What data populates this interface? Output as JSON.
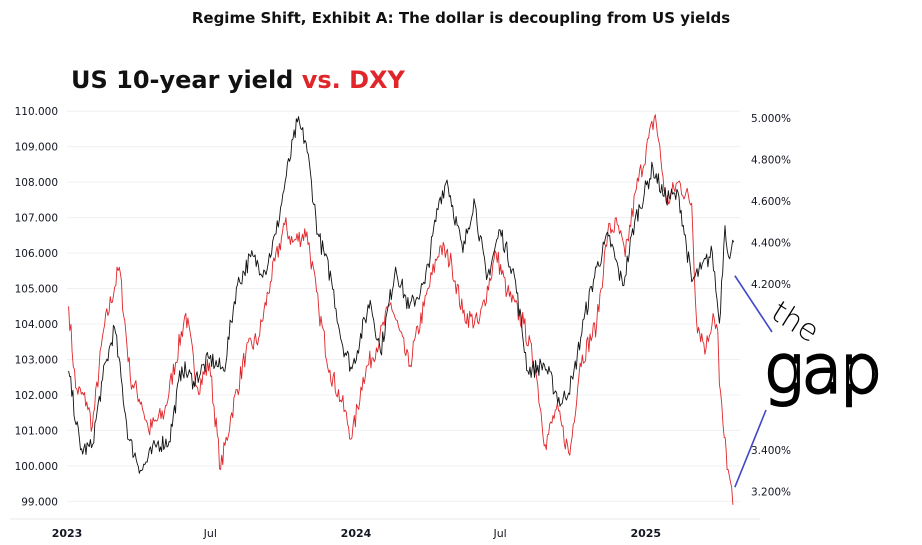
{
  "header": {
    "exhibit_title": "Regime Shift, Exhibit A: The dollar is decoupling from US yields"
  },
  "chart_title": {
    "part1": "US 10-year yield ",
    "part2": "vs. DXY"
  },
  "logo": {
    "line1": "the",
    "line2": "gap"
  },
  "colors": {
    "yield_line": "#111111",
    "dxy_line": "#e0262a",
    "gap_line": "#4347c9",
    "grid": "#eef0f3"
  },
  "chart_data": {
    "type": "line",
    "title": "US 10-year yield vs. DXY",
    "x_range": [
      "2023-01-01",
      "2025-04-30"
    ],
    "x_ticks": [
      {
        "date": "2023-01-01",
        "label": "2023",
        "bold": true
      },
      {
        "date": "2023-07-01",
        "label": "Jul",
        "bold": false
      },
      {
        "date": "2024-01-01",
        "label": "2024",
        "bold": true
      },
      {
        "date": "2024-07-01",
        "label": "Jul",
        "bold": false
      },
      {
        "date": "2025-01-01",
        "label": "2025",
        "bold": true
      }
    ],
    "left_axis": {
      "series": "DXY",
      "range": [
        98.7,
        110.4
      ],
      "ticks": [
        99,
        100,
        101,
        102,
        103,
        104,
        105,
        106,
        107,
        108,
        109,
        110
      ],
      "tick_labels": [
        "99.000",
        "100.000",
        "101.000",
        "102.000",
        "103.000",
        "104.000",
        "105.000",
        "106.000",
        "107.000",
        "108.000",
        "109.000",
        "110.000"
      ]
    },
    "right_axis": {
      "series": "US 10-year yield",
      "range": [
        3.1,
        5.1
      ],
      "ticks": [
        3.2,
        3.4,
        4.2,
        4.4,
        4.6,
        4.8,
        5.0
      ],
      "tick_labels": [
        "3.200%",
        "3.400%",
        "4.200%",
        "4.400%",
        "4.600%",
        "4.800%",
        "5.000%"
      ]
    },
    "series": [
      {
        "axis": "right",
        "points": [
          [
            "2023-01-03",
            3.78
          ],
          [
            "2023-01-18",
            3.4
          ],
          [
            "2023-02-01",
            3.41
          ],
          [
            "2023-02-15",
            3.74
          ],
          [
            "2023-03-02",
            3.99
          ],
          [
            "2023-03-20",
            3.45
          ],
          [
            "2023-04-05",
            3.3
          ],
          [
            "2023-04-25",
            3.43
          ],
          [
            "2023-05-10",
            3.44
          ],
          [
            "2023-05-26",
            3.8
          ],
          [
            "2023-06-10",
            3.73
          ],
          [
            "2023-06-30",
            3.84
          ],
          [
            "2023-07-18",
            3.78
          ],
          [
            "2023-08-03",
            4.18
          ],
          [
            "2023-08-21",
            4.33
          ],
          [
            "2023-09-08",
            4.26
          ],
          [
            "2023-09-22",
            4.44
          ],
          [
            "2023-10-05",
            4.72
          ],
          [
            "2023-10-19",
            4.98
          ],
          [
            "2023-10-30",
            4.88
          ],
          [
            "2023-11-14",
            4.44
          ],
          [
            "2023-12-01",
            4.22
          ],
          [
            "2023-12-14",
            3.92
          ],
          [
            "2023-12-27",
            3.79
          ],
          [
            "2024-01-19",
            4.12
          ],
          [
            "2024-02-01",
            3.87
          ],
          [
            "2024-02-20",
            4.28
          ],
          [
            "2024-03-08",
            4.08
          ],
          [
            "2024-03-28",
            4.2
          ],
          [
            "2024-04-15",
            4.6
          ],
          [
            "2024-04-25",
            4.7
          ],
          [
            "2024-05-15",
            4.35
          ],
          [
            "2024-05-29",
            4.61
          ],
          [
            "2024-06-14",
            4.22
          ],
          [
            "2024-07-01",
            4.46
          ],
          [
            "2024-07-19",
            4.24
          ],
          [
            "2024-08-05",
            3.78
          ],
          [
            "2024-08-26",
            3.81
          ],
          [
            "2024-09-16",
            3.62
          ],
          [
            "2024-10-01",
            3.74
          ],
          [
            "2024-10-15",
            4.03
          ],
          [
            "2024-10-31",
            4.28
          ],
          [
            "2024-11-15",
            4.43
          ],
          [
            "2024-12-03",
            4.19
          ],
          [
            "2024-12-18",
            4.5
          ],
          [
            "2025-01-10",
            4.76
          ],
          [
            "2025-01-24",
            4.62
          ],
          [
            "2025-02-12",
            4.62
          ],
          [
            "2025-02-28",
            4.21
          ],
          [
            "2025-03-12",
            4.27
          ],
          [
            "2025-03-26",
            4.35
          ],
          [
            "2025-04-04",
            4.01
          ],
          [
            "2025-04-11",
            4.48
          ],
          [
            "2025-04-17",
            4.32
          ],
          [
            "2025-04-22",
            4.4
          ]
        ]
      },
      {
        "axis": "left",
        "points": [
          [
            "2023-01-03",
            104.5
          ],
          [
            "2023-01-12",
            102.2
          ],
          [
            "2023-01-26",
            101.8
          ],
          [
            "2023-02-02",
            101.1
          ],
          [
            "2023-02-16",
            103.8
          ],
          [
            "2023-03-08",
            105.6
          ],
          [
            "2023-03-22",
            102.5
          ],
          [
            "2023-04-05",
            101.8
          ],
          [
            "2023-04-14",
            101.0
          ],
          [
            "2023-05-04",
            101.5
          ],
          [
            "2023-05-31",
            104.3
          ],
          [
            "2023-06-15",
            102.2
          ],
          [
            "2023-06-30",
            102.9
          ],
          [
            "2023-07-14",
            99.9
          ],
          [
            "2023-07-28",
            101.5
          ],
          [
            "2023-08-15",
            103.2
          ],
          [
            "2023-08-31",
            103.6
          ],
          [
            "2023-09-15",
            105.2
          ],
          [
            "2023-10-03",
            106.8
          ],
          [
            "2023-10-13",
            106.3
          ],
          [
            "2023-10-31",
            106.6
          ],
          [
            "2023-11-15",
            104.4
          ],
          [
            "2023-11-29",
            102.7
          ],
          [
            "2023-12-14",
            101.8
          ],
          [
            "2023-12-27",
            100.8
          ],
          [
            "2024-01-10",
            102.5
          ],
          [
            "2024-01-31",
            103.6
          ],
          [
            "2024-02-14",
            104.6
          ],
          [
            "2024-03-08",
            102.8
          ],
          [
            "2024-03-27",
            104.5
          ],
          [
            "2024-04-16",
            106.2
          ],
          [
            "2024-05-01",
            105.7
          ],
          [
            "2024-05-15",
            104.3
          ],
          [
            "2024-06-04",
            104.0
          ],
          [
            "2024-06-26",
            106.0
          ],
          [
            "2024-07-10",
            104.9
          ],
          [
            "2024-07-31",
            104.0
          ],
          [
            "2024-08-15",
            102.7
          ],
          [
            "2024-08-27",
            100.6
          ],
          [
            "2024-09-10",
            101.6
          ],
          [
            "2024-09-27",
            100.3
          ],
          [
            "2024-10-10",
            102.9
          ],
          [
            "2024-10-31",
            104.0
          ],
          [
            "2024-11-14",
            106.6
          ],
          [
            "2024-11-26",
            106.8
          ],
          [
            "2024-12-06",
            105.9
          ],
          [
            "2024-12-20",
            107.8
          ],
          [
            "2025-01-13",
            109.9
          ],
          [
            "2025-01-27",
            107.4
          ],
          [
            "2025-02-11",
            108.0
          ],
          [
            "2025-02-28",
            107.4
          ],
          [
            "2025-03-06",
            104.1
          ],
          [
            "2025-03-18",
            103.3
          ],
          [
            "2025-03-27",
            104.3
          ],
          [
            "2025-04-02",
            103.8
          ],
          [
            "2025-04-04",
            102.3
          ],
          [
            "2025-04-10",
            100.8
          ],
          [
            "2025-04-15",
            99.9
          ],
          [
            "2025-04-21",
            98.9
          ]
        ]
      }
    ],
    "annotations": [
      {
        "type": "gap-bracket",
        "label": "the gap",
        "upper": {
          "date": "2025-04-21",
          "yield": 4.2
        },
        "lower": {
          "date": "2025-04-21",
          "dxy": 99.4
        }
      }
    ]
  }
}
